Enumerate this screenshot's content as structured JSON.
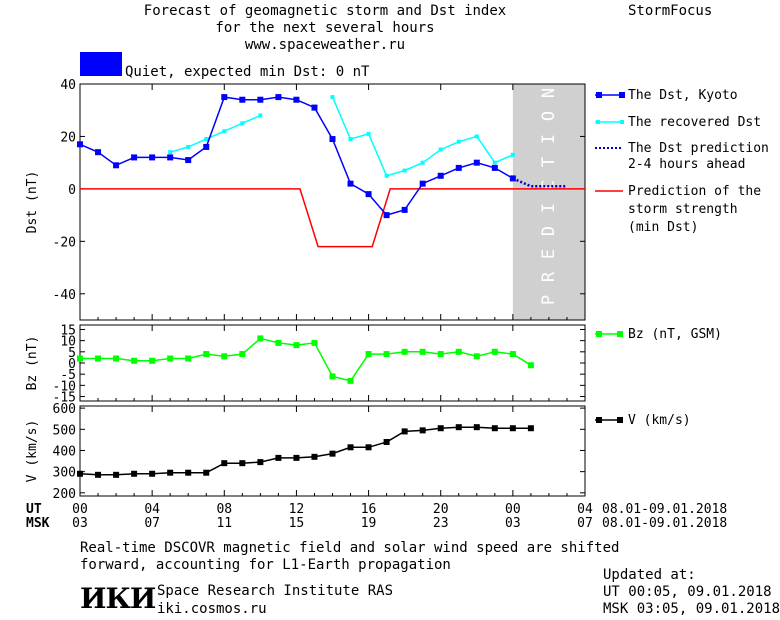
{
  "header": {
    "title_lines": [
      "Forecast of geomagnetic storm and Dst index",
      "for the next several hours",
      "www.spaceweather.ru"
    ],
    "brand": "StormFocus",
    "status_text": "Quiet, expected min Dst: 0 nT",
    "status_color": "#0000ff"
  },
  "legend": {
    "dst_kyoto": "The Dst, Kyoto",
    "dst_recovered": "The recovered Dst",
    "dst_prediction_lines": [
      "The Dst prediction",
      "2-4 hours ahead"
    ],
    "storm_lines": [
      "Prediction of the",
      "storm strength",
      "(min Dst)"
    ],
    "bz": "Bz (nT, GSM)",
    "v": "V (km/s)"
  },
  "prediction_label": "PREDICTION",
  "time_axis": {
    "ut_label": "UT",
    "msk_label": "MSK",
    "ut_ticks": [
      "00",
      "04",
      "08",
      "12",
      "16",
      "20",
      "00",
      "04"
    ],
    "msk_ticks": [
      "03",
      "07",
      "11",
      "15",
      "19",
      "23",
      "03",
      "07"
    ],
    "ut_range": "08.01-09.01.2018",
    "msk_range": "08.01-09.01.2018"
  },
  "footer": {
    "note_lines": [
      "Real-time DSCOVR magnetic field and solar wind speed are shifted",
      "forward, accounting for L1-Earth propagation"
    ],
    "logo": "ИКИ",
    "institute": "Space Research Institute RAS",
    "site": "iki.cosmos.ru",
    "updated_label": "Updated at:",
    "updated_ut": "UT   00:05, 09.01.2018",
    "updated_msk": "MSK 03:05, 09.01.2018"
  },
  "colors": {
    "dst": "#0000ff",
    "recovered": "#00ffff",
    "prediction": "#0000cc",
    "storm": "#ff0000",
    "bz": "#00ff00",
    "v": "#000000",
    "prediction_band": "#d0d0d0"
  },
  "chart_data": [
    {
      "type": "line",
      "ylabel": "Dst (nT)",
      "ylim": [
        -50,
        40
      ],
      "yticks": [
        40,
        20,
        0,
        -20,
        -40
      ],
      "xlabel": "",
      "x_unit": "hours since 00 UT 08.01.2018",
      "xlim": [
        0,
        28
      ],
      "prediction_start": 24,
      "series": [
        {
          "name": "The Dst, Kyoto",
          "x": [
            0,
            1,
            2,
            3,
            4,
            5,
            6,
            7,
            8,
            9,
            10,
            11,
            12,
            13,
            14,
            15,
            16,
            17,
            18,
            19,
            20,
            21,
            22,
            23,
            24
          ],
          "y": [
            17,
            14,
            9,
            12,
            12,
            12,
            11,
            16,
            35,
            34,
            34,
            35,
            34,
            31,
            19,
            2,
            -2,
            -10,
            -8,
            2,
            5,
            8,
            10,
            8,
            4
          ]
        },
        {
          "name": "The recovered Dst",
          "x": [
            5,
            6,
            7,
            8,
            9,
            10,
            null,
            14,
            15,
            16,
            17,
            18,
            19,
            20,
            21,
            22,
            23,
            24
          ],
          "y": [
            14,
            16,
            19,
            22,
            25,
            28,
            null,
            35,
            19,
            21,
            5,
            7,
            10,
            15,
            18,
            20,
            10,
            13
          ]
        },
        {
          "name": "The Dst prediction",
          "x": [
            24,
            25,
            26,
            27
          ],
          "y": [
            4,
            1,
            1,
            1
          ]
        },
        {
          "name": "Prediction of the storm strength",
          "x": [
            0,
            12.2,
            13.2,
            16.2,
            17.2,
            28
          ],
          "y": [
            0,
            0,
            -22,
            -22,
            0,
            0
          ]
        }
      ]
    },
    {
      "type": "line",
      "ylabel": "Bz (nT)",
      "ylim": [
        -17,
        17
      ],
      "yticks": [
        15,
        10,
        5,
        0,
        -5,
        -10,
        -15
      ],
      "series": [
        {
          "name": "Bz (nT, GSM)",
          "x": [
            0,
            1,
            2,
            3,
            4,
            5,
            6,
            7,
            8,
            9,
            10,
            11,
            12,
            13,
            14,
            15,
            16,
            17,
            18,
            19,
            20,
            21,
            22,
            23,
            24,
            25
          ],
          "y": [
            2,
            2,
            2,
            1,
            1,
            2,
            2,
            4,
            3,
            4,
            11,
            9,
            8,
            9,
            -6,
            -8,
            4,
            4,
            5,
            5,
            4,
            5,
            3,
            5,
            4,
            -1
          ]
        }
      ]
    },
    {
      "type": "line",
      "ylabel": "V (km/s)",
      "ylim": [
        185,
        610
      ],
      "yticks": [
        600,
        500,
        400,
        300,
        200
      ],
      "series": [
        {
          "name": "V (km/s)",
          "x": [
            0,
            1,
            2,
            3,
            4,
            5,
            6,
            7,
            8,
            9,
            10,
            11,
            12,
            13,
            14,
            15,
            16,
            17,
            18,
            19,
            20,
            21,
            22,
            23,
            24,
            25
          ],
          "y": [
            290,
            285,
            285,
            290,
            290,
            295,
            295,
            295,
            340,
            340,
            345,
            365,
            365,
            370,
            385,
            415,
            415,
            440,
            490,
            495,
            505,
            510,
            510,
            505,
            505,
            505
          ]
        }
      ]
    }
  ]
}
